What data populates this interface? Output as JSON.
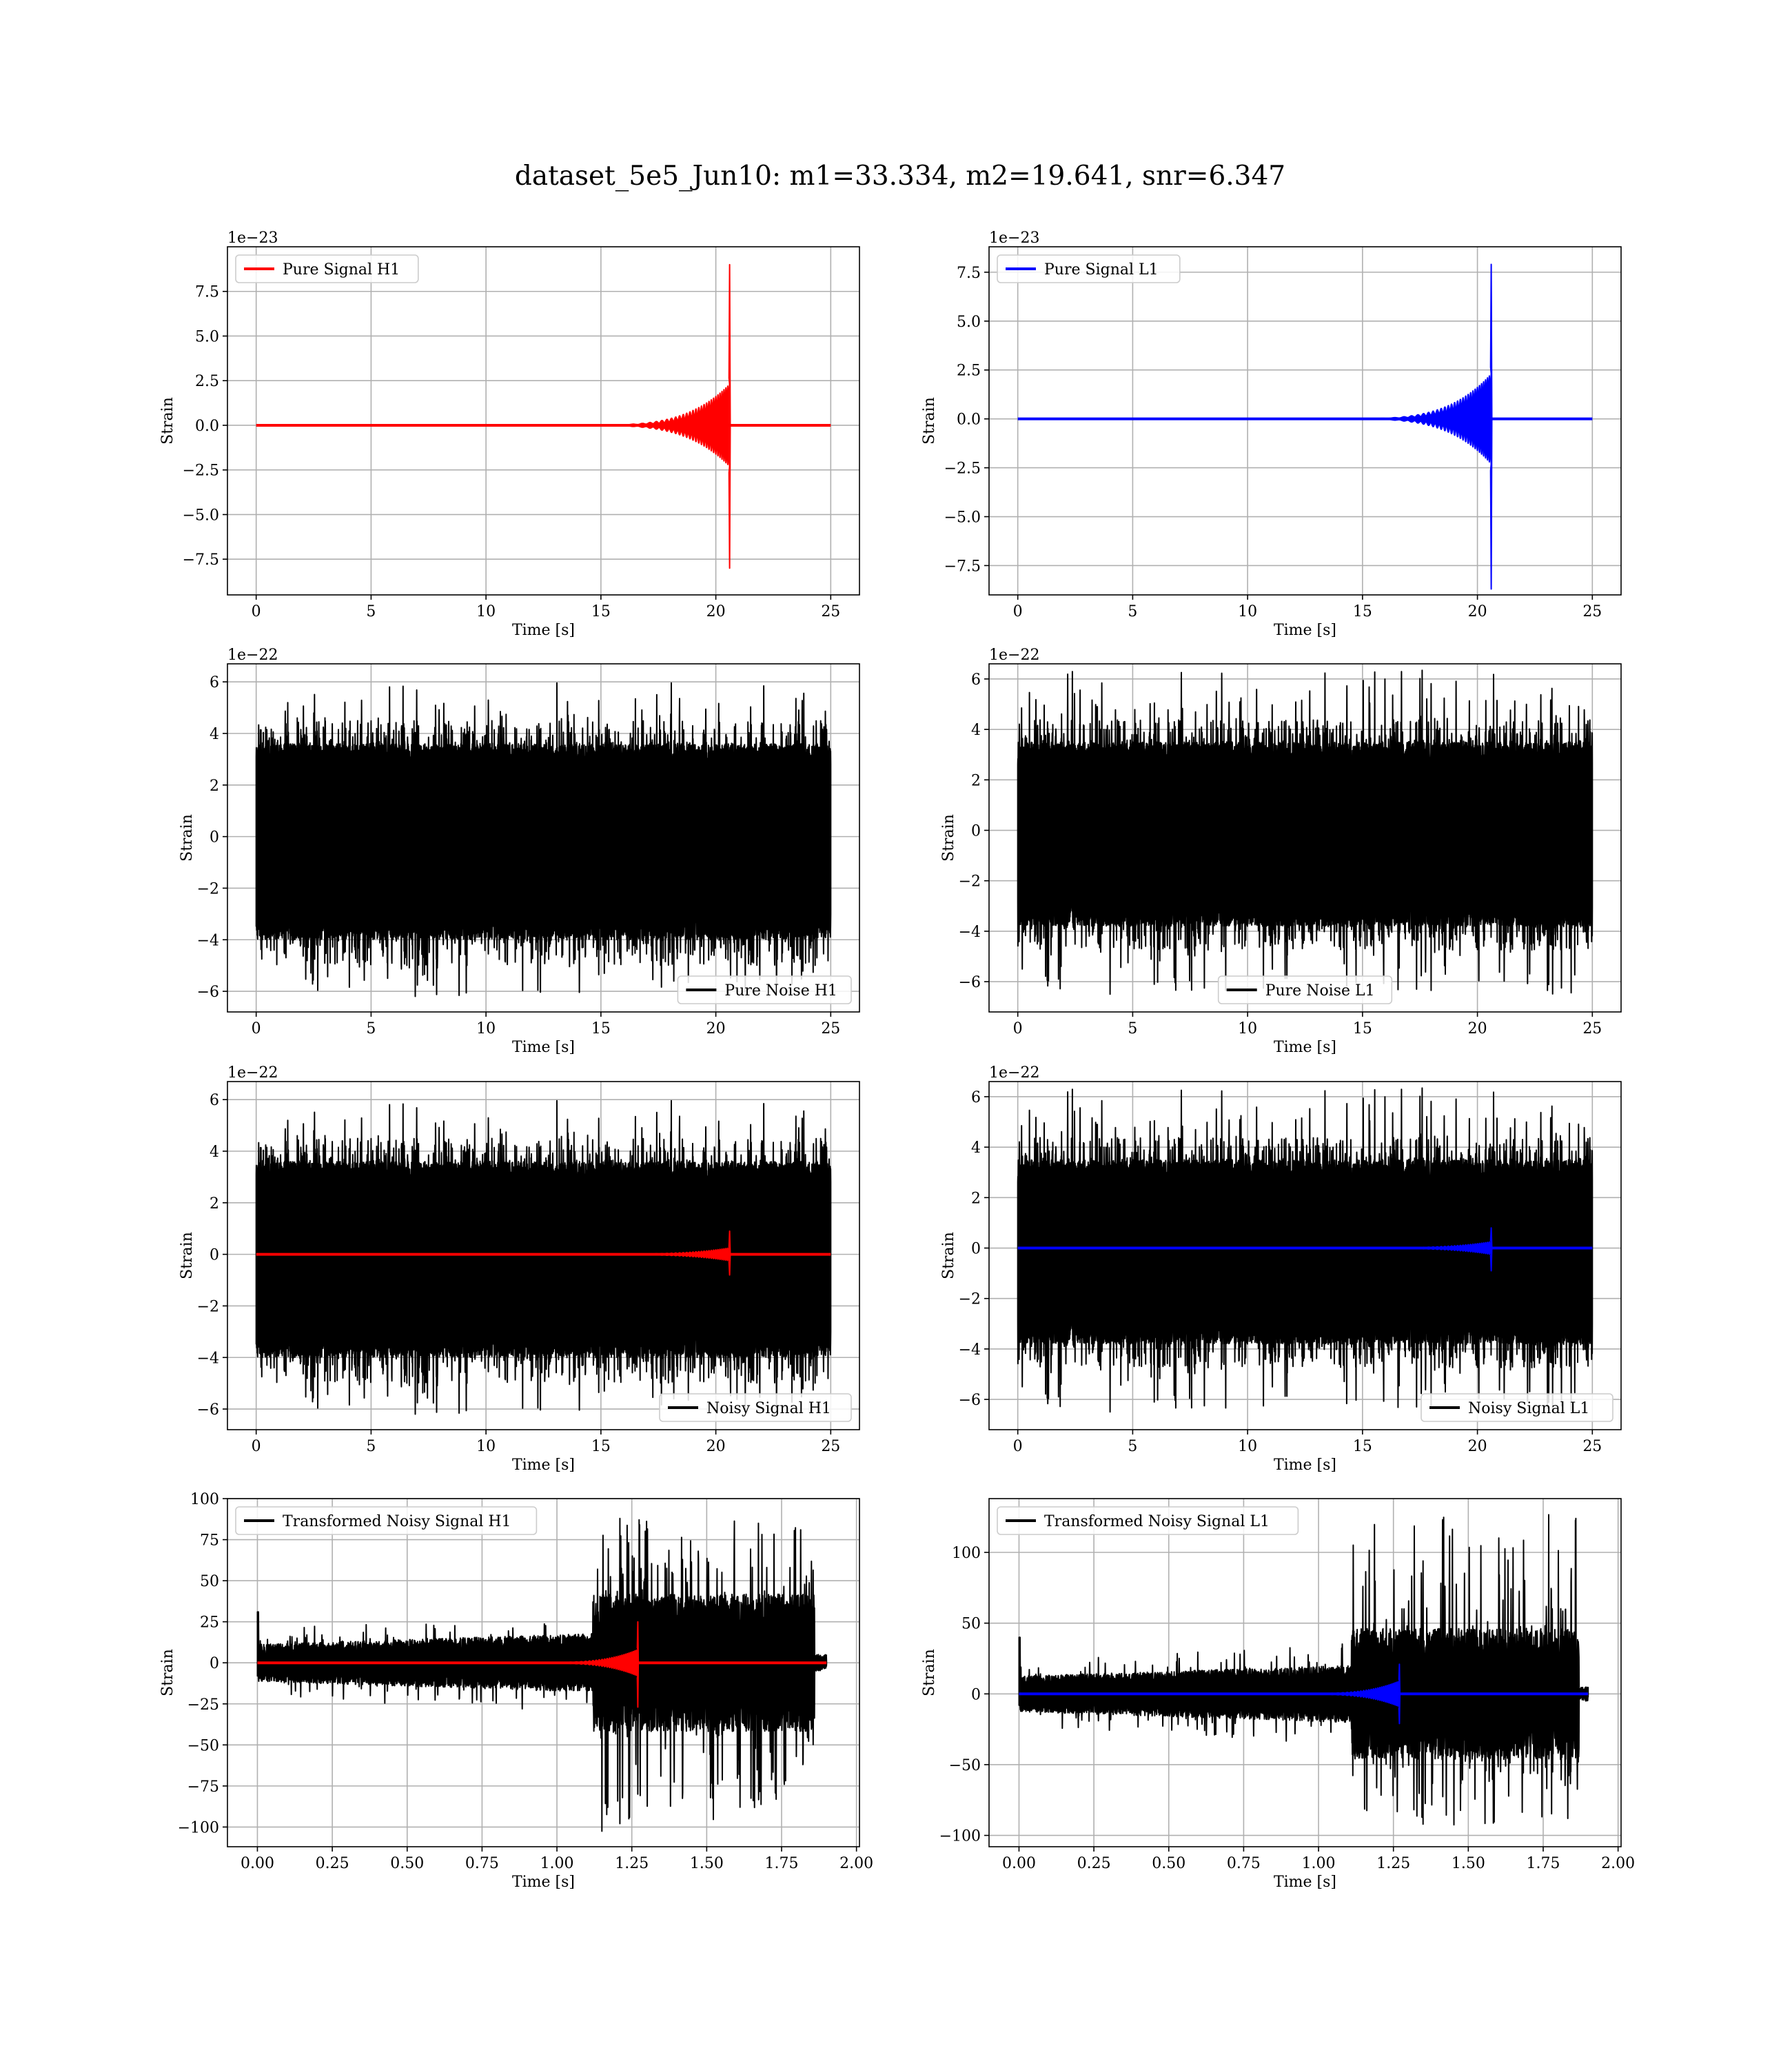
{
  "chart_data": {
    "suptitle": "dataset_5e5_Jun10: m1=33.334, m2=19.641, snr=6.347",
    "subplots": [
      {
        "type": "line",
        "legend": {
          "entries": [
            {
              "label": "Pure Signal H1",
              "color": "#ff0000"
            }
          ],
          "placement": "upper left"
        },
        "xlabel": "Time [s]",
        "ylabel": "Strain",
        "offset_text": "1e−23",
        "xlim": [
          -1.25,
          26.25
        ],
        "ylim": [
          -9.5,
          10.0
        ],
        "xticks": [
          0,
          5,
          10,
          15,
          20,
          25
        ],
        "xtick_labels": [
          "0",
          "5",
          "10",
          "15",
          "20",
          "25"
        ],
        "yticks": [
          -7.5,
          -5.0,
          -2.5,
          0.0,
          2.5,
          5.0,
          7.5
        ],
        "ytick_labels": [
          "−7.5",
          "−5.0",
          "−2.5",
          "0.0",
          "2.5",
          "5.0",
          "7.5"
        ],
        "grid": true,
        "series": [
          {
            "kind": "chirp",
            "color": "#ff0000",
            "values": {
              "t_start": 0,
              "t_end": 25,
              "t_merger": 20.6,
              "grow_start": 13.5,
              "inspiral_amp": 2.3,
              "peak_pos": 9.0,
              "peak_neg": -8.0
            }
          }
        ]
      },
      {
        "type": "line",
        "legend": {
          "entries": [
            {
              "label": "Pure Signal L1",
              "color": "#0000ff"
            }
          ],
          "placement": "upper left"
        },
        "xlabel": "Time [s]",
        "ylabel": "Strain",
        "offset_text": "1e−23",
        "xlim": [
          -1.25,
          26.25
        ],
        "ylim": [
          -9.0,
          8.8
        ],
        "xticks": [
          0,
          5,
          10,
          15,
          20,
          25
        ],
        "xtick_labels": [
          "0",
          "5",
          "10",
          "15",
          "20",
          "25"
        ],
        "yticks": [
          -7.5,
          -5.0,
          -2.5,
          0.0,
          2.5,
          5.0,
          7.5
        ],
        "ytick_labels": [
          "−7.5",
          "−5.0",
          "−2.5",
          "0.0",
          "2.5",
          "5.0",
          "7.5"
        ],
        "grid": true,
        "series": [
          {
            "kind": "chirp",
            "color": "#0000ff",
            "values": {
              "t_start": 0,
              "t_end": 25,
              "t_merger": 20.6,
              "grow_start": 13.5,
              "inspiral_amp": 2.3,
              "peak_pos": 7.9,
              "peak_neg": -8.7
            }
          }
        ]
      },
      {
        "type": "line",
        "legend": {
          "entries": [
            {
              "label": "Pure Noise H1",
              "color": "#000000"
            }
          ],
          "placement": "lower right"
        },
        "xlabel": "Time [s]",
        "ylabel": "Strain",
        "offset_text": "1e−22",
        "xlim": [
          -1.25,
          26.25
        ],
        "ylim": [
          -6.8,
          6.7
        ],
        "xticks": [
          0,
          5,
          10,
          15,
          20,
          25
        ],
        "xtick_labels": [
          "0",
          "5",
          "10",
          "15",
          "20",
          "25"
        ],
        "yticks": [
          -6,
          -4,
          -2,
          0,
          2,
          4,
          6
        ],
        "ytick_labels": [
          "−6",
          "−4",
          "−2",
          "0",
          "2",
          "4",
          "6"
        ],
        "grid": true,
        "series": [
          {
            "kind": "noise",
            "color": "#000000",
            "values": {
              "t_start": 0,
              "t_end": 25,
              "band_lo": -4.0,
              "band_hi": 3.6,
              "spike_max": 6.0,
              "spike_min": -6.2,
              "seed": 11
            }
          }
        ]
      },
      {
        "type": "line",
        "legend": {
          "entries": [
            {
              "label": "Pure Noise L1",
              "color": "#000000"
            }
          ],
          "placement": "lower center"
        },
        "xlabel": "Time [s]",
        "ylabel": "Strain",
        "offset_text": "1e−22",
        "xlim": [
          -1.25,
          26.25
        ],
        "ylim": [
          -7.2,
          6.6
        ],
        "xticks": [
          0,
          5,
          10,
          15,
          20,
          25
        ],
        "xtick_labels": [
          "0",
          "5",
          "10",
          "15",
          "20",
          "25"
        ],
        "yticks": [
          -6,
          -4,
          -2,
          0,
          2,
          4,
          6
        ],
        "ytick_labels": [
          "−6",
          "−4",
          "−2",
          "0",
          "2",
          "4",
          "6"
        ],
        "grid": true,
        "series": [
          {
            "kind": "noise",
            "color": "#000000",
            "values": {
              "t_start": 0,
              "t_end": 25,
              "band_lo": -3.8,
              "band_hi": 3.5,
              "spike_max": 6.4,
              "spike_min": -6.5,
              "seed": 23
            }
          }
        ]
      },
      {
        "type": "line",
        "legend": {
          "entries": [
            {
              "label": "Noisy Signal H1",
              "color": "#000000"
            }
          ],
          "placement": "lower right"
        },
        "xlabel": "Time [s]",
        "ylabel": "Strain",
        "offset_text": "1e−22",
        "xlim": [
          -1.25,
          26.25
        ],
        "ylim": [
          -6.8,
          6.7
        ],
        "xticks": [
          0,
          5,
          10,
          15,
          20,
          25
        ],
        "xtick_labels": [
          "0",
          "5",
          "10",
          "15",
          "20",
          "25"
        ],
        "yticks": [
          -6,
          -4,
          -2,
          0,
          2,
          4,
          6
        ],
        "ytick_labels": [
          "−6",
          "−4",
          "−2",
          "0",
          "2",
          "4",
          "6"
        ],
        "grid": true,
        "series": [
          {
            "kind": "noise",
            "color": "#000000",
            "values": {
              "t_start": 0,
              "t_end": 25,
              "band_lo": -4.0,
              "band_hi": 3.6,
              "spike_max": 6.0,
              "spike_min": -6.2,
              "seed": 11
            }
          },
          {
            "kind": "chirp",
            "color": "#ff0000",
            "values": {
              "t_start": 0,
              "t_end": 25,
              "t_merger": 20.6,
              "grow_start": 13.5,
              "inspiral_amp": 0.25,
              "peak_pos": 0.9,
              "peak_neg": -0.8
            }
          }
        ]
      },
      {
        "type": "line",
        "legend": {
          "entries": [
            {
              "label": "Noisy Signal L1",
              "color": "#000000"
            }
          ],
          "placement": "lower right"
        },
        "xlabel": "Time [s]",
        "ylabel": "Strain",
        "offset_text": "1e−22",
        "xlim": [
          -1.25,
          26.25
        ],
        "ylim": [
          -7.2,
          6.6
        ],
        "xticks": [
          0,
          5,
          10,
          15,
          20,
          25
        ],
        "xtick_labels": [
          "0",
          "5",
          "10",
          "15",
          "20",
          "25"
        ],
        "yticks": [
          -6,
          -4,
          -2,
          0,
          2,
          4,
          6
        ],
        "ytick_labels": [
          "−6",
          "−4",
          "−2",
          "0",
          "2",
          "4",
          "6"
        ],
        "grid": true,
        "series": [
          {
            "kind": "noise",
            "color": "#000000",
            "values": {
              "t_start": 0,
              "t_end": 25,
              "band_lo": -3.8,
              "band_hi": 3.5,
              "spike_max": 6.4,
              "spike_min": -6.5,
              "seed": 23
            }
          },
          {
            "kind": "chirp",
            "color": "#0000ff",
            "values": {
              "t_start": 0,
              "t_end": 25,
              "t_merger": 20.6,
              "grow_start": 13.5,
              "inspiral_amp": 0.25,
              "peak_pos": 0.8,
              "peak_neg": -0.9
            }
          }
        ]
      },
      {
        "type": "line",
        "legend": {
          "entries": [
            {
              "label": "Transformed Noisy Signal H1",
              "color": "#000000"
            }
          ],
          "placement": "upper left"
        },
        "xlabel": "Time [s]",
        "ylabel": "Strain",
        "offset_text": "",
        "xlim": [
          -0.1,
          2.01
        ],
        "ylim": [
          -112,
          100
        ],
        "xticks": [
          0.0,
          0.25,
          0.5,
          0.75,
          1.0,
          1.25,
          1.5,
          1.75,
          2.0
        ],
        "xtick_labels": [
          "0.00",
          "0.25",
          "0.50",
          "0.75",
          "1.00",
          "1.25",
          "1.50",
          "1.75",
          "2.00"
        ],
        "yticks": [
          -100,
          -75,
          -50,
          -25,
          0,
          25,
          50,
          75,
          100
        ],
        "ytick_labels": [
          "−100",
          "−75",
          "−50",
          "−25",
          "0",
          "25",
          "50",
          "75",
          "100"
        ],
        "grid": true,
        "series": [
          {
            "kind": "whitened",
            "color": "#000000",
            "values": {
              "t_start": 0,
              "t_end": 1.9,
              "step_t": 1.12,
              "low_amp": 8,
              "high_band": 38,
              "spike_max": 90,
              "spike_min": -103,
              "start_spike": 31,
              "end_t": 1.86,
              "seed": 37
            }
          },
          {
            "kind": "chirp",
            "color": "#ff0000",
            "values": {
              "t_start": 0,
              "t_end": 1.9,
              "t_merger": 1.27,
              "grow_start": 0.85,
              "inspiral_amp": 8,
              "peak_pos": 25,
              "peak_neg": -27
            }
          }
        ]
      },
      {
        "type": "line",
        "legend": {
          "entries": [
            {
              "label": "Transformed Noisy Signal L1",
              "color": "#000000"
            }
          ],
          "placement": "upper left"
        },
        "xlabel": "Time [s]",
        "ylabel": "Strain",
        "offset_text": "",
        "xlim": [
          -0.1,
          2.01
        ],
        "ylim": [
          -108,
          138
        ],
        "xticks": [
          0.0,
          0.25,
          0.5,
          0.75,
          1.0,
          1.25,
          1.5,
          1.75,
          2.0
        ],
        "xtick_labels": [
          "0.00",
          "0.25",
          "0.50",
          "0.75",
          "1.00",
          "1.25",
          "1.50",
          "1.75",
          "2.00"
        ],
        "yticks": [
          -100,
          -50,
          0,
          50,
          100
        ],
        "ytick_labels": [
          "−100",
          "−50",
          "0",
          "50",
          "100"
        ],
        "grid": true,
        "series": [
          {
            "kind": "whitened",
            "color": "#000000",
            "values": {
              "t_start": 0,
              "t_end": 1.9,
              "step_t": 1.11,
              "low_amp": 9,
              "high_band": 42,
              "spike_max": 127,
              "spike_min": -94,
              "start_spike": 40,
              "end_t": 1.87,
              "seed": 53
            }
          },
          {
            "kind": "chirp",
            "color": "#0000ff",
            "values": {
              "t_start": 0,
              "t_end": 1.9,
              "t_merger": 1.27,
              "grow_start": 0.85,
              "inspiral_amp": 9,
              "peak_pos": 21,
              "peak_neg": -21
            }
          }
        ]
      }
    ]
  }
}
